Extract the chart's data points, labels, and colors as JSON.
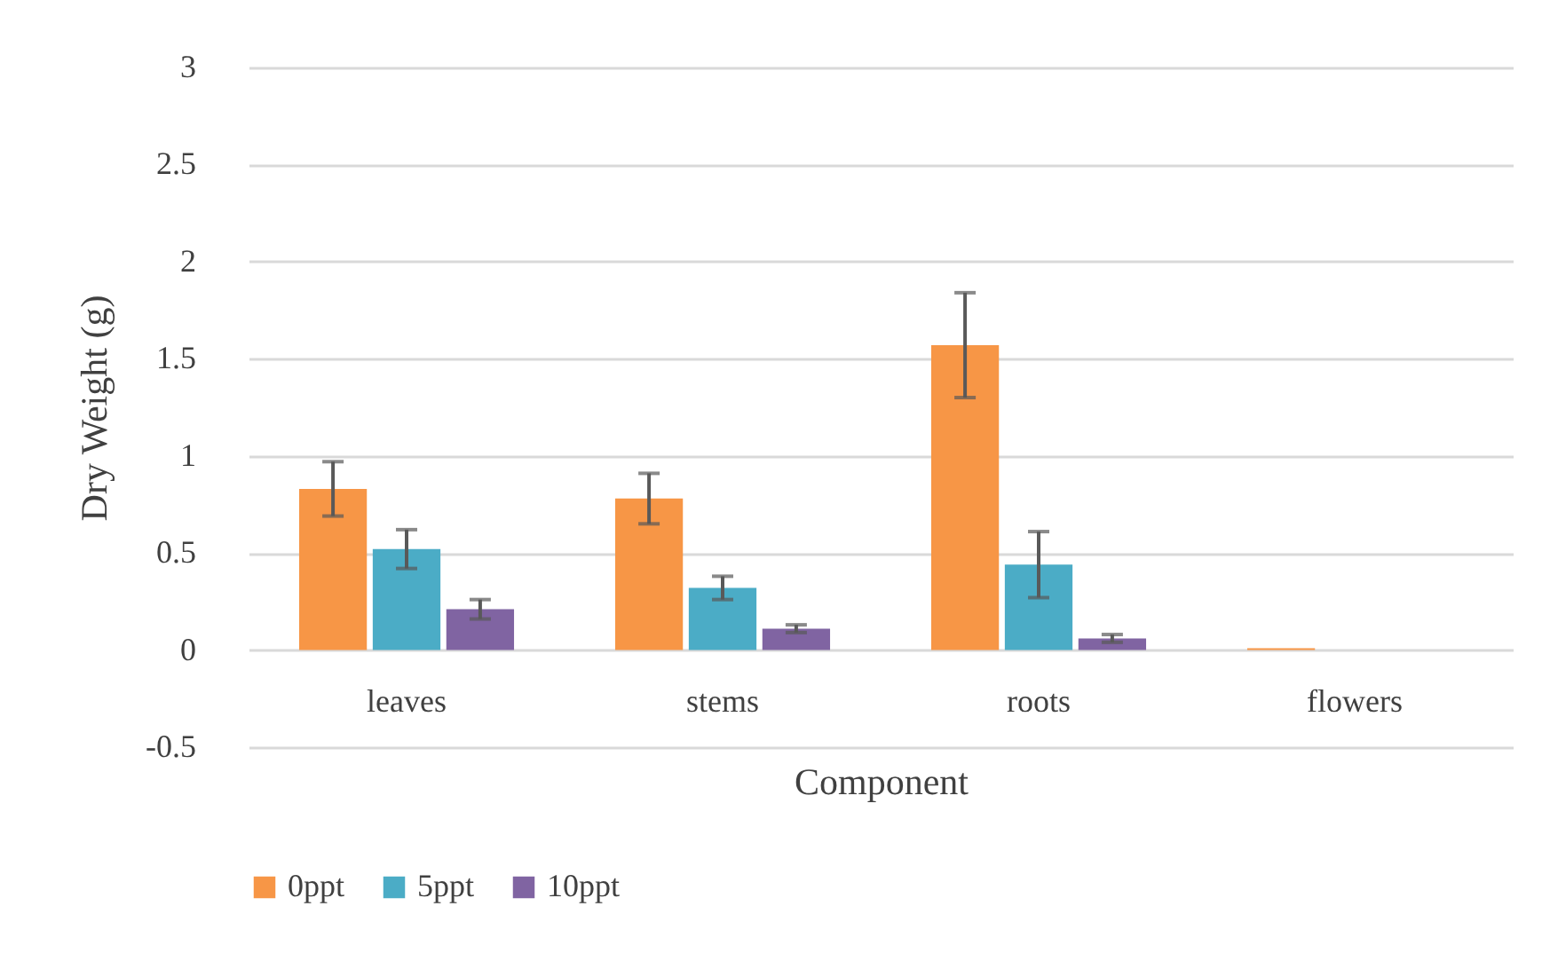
{
  "chart_data": {
    "type": "bar",
    "xlabel": "Component",
    "ylabel": "Dry Weight (g)",
    "categories": [
      "leaves",
      "stems",
      "roots",
      "flowers"
    ],
    "series": [
      {
        "name": "0ppt",
        "color": "#f79646",
        "values": [
          0.83,
          0.78,
          1.57,
          0.01
        ],
        "errors": [
          0.14,
          0.13,
          0.27,
          null
        ]
      },
      {
        "name": "5ppt",
        "color": "#4bacc6",
        "values": [
          0.52,
          0.32,
          0.44,
          0
        ],
        "errors": [
          0.1,
          0.06,
          0.17,
          null
        ]
      },
      {
        "name": "10ppt",
        "color": "#8064a2",
        "values": [
          0.21,
          0.11,
          0.06,
          0
        ],
        "errors": [
          0.05,
          0.02,
          0.02,
          null
        ]
      }
    ],
    "ylim": [
      -0.5,
      3
    ],
    "yticks": [
      -0.5,
      0,
      0.5,
      1,
      1.5,
      2,
      2.5,
      3
    ],
    "grid": "y",
    "legend": "bottom"
  }
}
